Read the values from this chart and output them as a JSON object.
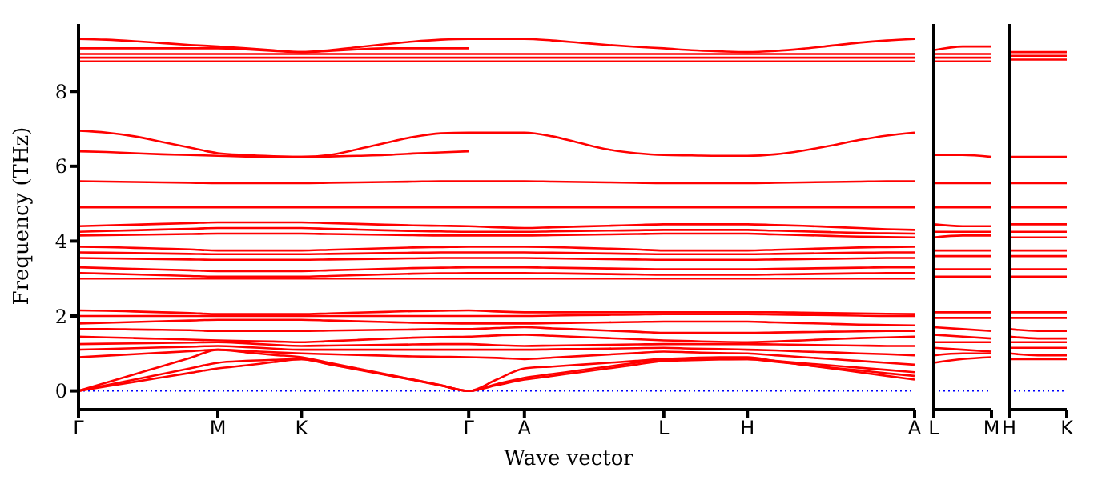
{
  "chart_data": [
    {
      "type": "line",
      "ylabel": "Frequency (THz)",
      "xlabel": "Wave vector",
      "ylim": [
        -0.5,
        9.8
      ],
      "yticks": [
        0,
        2,
        4,
        6,
        8
      ],
      "categories": [
        "Γ",
        null,
        null,
        null,
        null,
        "M",
        null,
        null,
        "K",
        null,
        null,
        null,
        null,
        null,
        "Γ",
        null,
        "A",
        null,
        null,
        null,
        null,
        "L",
        null,
        null,
        "H",
        null,
        null,
        null,
        null,
        null,
        "A"
      ],
      "marker": "none",
      "line_style": "solid",
      "ref_lines": [
        {
          "axis": "y",
          "value": 0,
          "color": "#0000ff",
          "line_style": "dotted"
        }
      ],
      "series": [
        {
          "color": "#ff0000",
          "values": [
            9.4,
            9.38,
            9.34,
            9.29,
            9.24,
            9.2,
            9.15,
            9.1,
            9.05,
            9.1,
            9.18,
            9.26,
            9.33,
            9.38,
            9.4,
            9.4,
            9.4,
            9.36,
            9.3,
            9.24,
            9.19,
            9.15,
            9.1,
            9.07,
            9.05,
            9.08,
            9.14,
            9.22,
            9.3,
            9.36,
            9.4
          ]
        },
        {
          "color": "#ff0000",
          "values": [
            9.15,
            9.15,
            9.15,
            9.15,
            9.15,
            9.15,
            9.12,
            9.08,
            9.05,
            9.08,
            9.12,
            9.15,
            9.15,
            9.15,
            9.15,
            null,
            null,
            null,
            null,
            null,
            null,
            null,
            null,
            null,
            null,
            null,
            null,
            null,
            null,
            null,
            null
          ]
        },
        {
          "color": "#ff0000",
          "values": [
            9.0,
            9.0,
            9.0,
            9.0,
            9.0,
            9.0,
            9.0,
            9.0,
            9.0,
            9.0,
            9.0,
            9.0,
            9.0,
            9.0,
            9.0,
            9.0,
            9.0,
            9.0,
            9.0,
            9.0,
            9.0,
            9.0,
            9.0,
            9.0,
            9.0,
            9.0,
            9.0,
            9.0,
            9.0,
            9.0,
            9.0
          ]
        },
        {
          "color": "#ff0000",
          "values": [
            8.9,
            8.9,
            8.9,
            8.9,
            8.9,
            8.9,
            8.9,
            8.9,
            8.9,
            8.9,
            8.9,
            8.9,
            8.9,
            8.9,
            8.9,
            8.9,
            8.9,
            8.9,
            8.9,
            8.9,
            8.9,
            8.9,
            8.9,
            8.9,
            8.9,
            8.9,
            8.9,
            8.9,
            8.9,
            8.9,
            8.9
          ]
        },
        {
          "color": "#ff0000",
          "values": [
            8.8,
            8.8,
            8.8,
            8.8,
            8.8,
            8.8,
            8.8,
            8.8,
            8.8,
            8.8,
            8.8,
            8.8,
            8.8,
            8.8,
            8.8,
            8.8,
            8.8,
            8.8,
            8.8,
            8.8,
            8.8,
            8.8,
            8.8,
            8.8,
            8.8,
            8.8,
            8.8,
            8.8,
            8.8,
            8.8,
            8.8
          ]
        },
        {
          "color": "#ff0000",
          "values": [
            6.95,
            6.9,
            6.8,
            6.65,
            6.5,
            6.35,
            6.3,
            6.27,
            6.25,
            6.3,
            6.45,
            6.62,
            6.78,
            6.88,
            6.9,
            6.9,
            6.9,
            6.8,
            6.62,
            6.45,
            6.35,
            6.3,
            6.29,
            6.28,
            6.28,
            6.32,
            6.42,
            6.55,
            6.7,
            6.82,
            6.9
          ]
        },
        {
          "color": "#ff0000",
          "values": [
            6.4,
            6.38,
            6.35,
            6.32,
            6.3,
            6.28,
            6.26,
            6.25,
            6.25,
            6.26,
            6.28,
            6.3,
            6.34,
            6.37,
            6.4,
            null,
            null,
            null,
            null,
            null,
            null,
            null,
            null,
            null,
            null,
            null,
            null,
            null,
            null,
            null,
            null
          ]
        },
        {
          "color": "#ff0000",
          "values": [
            5.6,
            5.59,
            5.58,
            5.57,
            5.56,
            5.55,
            5.55,
            5.55,
            5.55,
            5.56,
            5.57,
            5.58,
            5.59,
            5.6,
            5.6,
            5.6,
            5.6,
            5.59,
            5.58,
            5.57,
            5.56,
            5.55,
            5.55,
            5.55,
            5.55,
            5.56,
            5.57,
            5.58,
            5.59,
            5.6,
            5.6
          ]
        },
        {
          "color": "#ff0000",
          "values": [
            4.9,
            4.9,
            4.9,
            4.9,
            4.9,
            4.9,
            4.9,
            4.9,
            4.9,
            4.9,
            4.9,
            4.9,
            4.9,
            4.9,
            4.9,
            4.9,
            4.9,
            4.9,
            4.9,
            4.9,
            4.9,
            4.9,
            4.9,
            4.9,
            4.9,
            4.9,
            4.9,
            4.9,
            4.9,
            4.9,
            4.9
          ]
        },
        {
          "color": "#ff0000",
          "values": [
            4.4,
            4.42,
            4.44,
            4.46,
            4.48,
            4.5,
            4.5,
            4.5,
            4.5,
            4.48,
            4.46,
            4.44,
            4.42,
            4.41,
            4.4,
            4.37,
            4.35,
            4.37,
            4.39,
            4.41,
            4.43,
            4.45,
            4.45,
            4.45,
            4.45,
            4.43,
            4.41,
            4.38,
            4.35,
            4.32,
            4.3
          ]
        },
        {
          "color": "#ff0000",
          "values": [
            4.25,
            4.27,
            4.29,
            4.31,
            4.33,
            4.35,
            4.35,
            4.35,
            4.35,
            4.33,
            4.31,
            4.29,
            4.27,
            4.26,
            4.25,
            4.25,
            4.25,
            4.26,
            4.27,
            4.28,
            4.29,
            4.3,
            4.3,
            4.3,
            4.3,
            4.28,
            4.26,
            4.24,
            4.22,
            4.21,
            4.2
          ]
        },
        {
          "color": "#ff0000",
          "values": [
            4.15,
            4.16,
            4.17,
            4.18,
            4.19,
            4.2,
            4.2,
            4.2,
            4.2,
            4.19,
            4.18,
            4.17,
            4.16,
            4.15,
            4.15,
            4.15,
            4.15,
            4.16,
            4.17,
            4.18,
            4.19,
            4.2,
            4.2,
            4.2,
            4.2,
            4.18,
            4.16,
            4.14,
            4.12,
            4.11,
            4.1
          ]
        },
        {
          "color": "#ff0000",
          "values": [
            3.85,
            3.84,
            3.82,
            3.8,
            3.78,
            3.75,
            3.75,
            3.75,
            3.75,
            3.77,
            3.79,
            3.81,
            3.83,
            3.84,
            3.85,
            3.85,
            3.85,
            3.84,
            3.82,
            3.8,
            3.78,
            3.75,
            3.75,
            3.75,
            3.75,
            3.77,
            3.79,
            3.81,
            3.83,
            3.84,
            3.85
          ]
        },
        {
          "color": "#ff0000",
          "values": [
            3.7,
            3.69,
            3.68,
            3.67,
            3.66,
            3.65,
            3.65,
            3.65,
            3.65,
            3.66,
            3.67,
            3.68,
            3.69,
            3.7,
            3.7,
            3.7,
            3.7,
            3.69,
            3.68,
            3.67,
            3.66,
            3.65,
            3.65,
            3.65,
            3.65,
            3.66,
            3.67,
            3.68,
            3.69,
            3.7,
            3.7
          ]
        },
        {
          "color": "#ff0000",
          "values": [
            3.55,
            3.54,
            3.53,
            3.52,
            3.51,
            3.5,
            3.5,
            3.5,
            3.5,
            3.51,
            3.52,
            3.53,
            3.54,
            3.55,
            3.55,
            3.55,
            3.55,
            3.54,
            3.53,
            3.52,
            3.51,
            3.5,
            3.5,
            3.5,
            3.5,
            3.51,
            3.52,
            3.53,
            3.54,
            3.55,
            3.55
          ]
        },
        {
          "color": "#ff0000",
          "values": [
            3.3,
            3.28,
            3.26,
            3.24,
            3.22,
            3.2,
            3.2,
            3.2,
            3.2,
            3.22,
            3.24,
            3.26,
            3.28,
            3.29,
            3.3,
            3.3,
            3.3,
            3.29,
            3.28,
            3.27,
            3.26,
            3.25,
            3.25,
            3.25,
            3.25,
            3.26,
            3.27,
            3.28,
            3.29,
            3.3,
            3.3
          ]
        },
        {
          "color": "#ff0000",
          "values": [
            3.15,
            3.13,
            3.11,
            3.09,
            3.07,
            3.05,
            3.05,
            3.05,
            3.05,
            3.07,
            3.09,
            3.11,
            3.13,
            3.14,
            3.15,
            3.15,
            3.15,
            3.14,
            3.13,
            3.12,
            3.11,
            3.1,
            3.1,
            3.1,
            3.1,
            3.11,
            3.12,
            3.13,
            3.14,
            3.15,
            3.15
          ]
        },
        {
          "color": "#ff0000",
          "values": [
            3.0,
            3.0,
            3.0,
            3.0,
            3.0,
            3.0,
            3.0,
            3.0,
            3.0,
            3.0,
            3.0,
            3.0,
            3.0,
            3.0,
            3.0,
            3.0,
            3.0,
            3.0,
            3.0,
            3.0,
            3.0,
            3.0,
            3.0,
            3.0,
            3.0,
            3.0,
            3.0,
            3.0,
            3.0,
            3.0,
            3.0
          ]
        },
        {
          "color": "#ff0000",
          "values": [
            2.15,
            2.14,
            2.12,
            2.1,
            2.08,
            2.05,
            2.05,
            2.05,
            2.05,
            2.07,
            2.09,
            2.11,
            2.13,
            2.14,
            2.15,
            2.12,
            2.1,
            2.1,
            2.1,
            2.1,
            2.1,
            2.1,
            2.1,
            2.1,
            2.1,
            2.1,
            2.09,
            2.08,
            2.07,
            2.06,
            2.05
          ]
        },
        {
          "color": "#ff0000",
          "values": [
            2.0,
            2.0,
            2.0,
            2.0,
            2.0,
            2.0,
            2.0,
            2.0,
            2.0,
            2.0,
            2.0,
            2.0,
            2.0,
            2.0,
            2.0,
            2.0,
            2.0,
            2.01,
            2.02,
            2.03,
            2.04,
            2.05,
            2.05,
            2.05,
            2.05,
            2.04,
            2.03,
            2.02,
            2.01,
            2.0,
            2.0
          ]
        },
        {
          "color": "#ff0000",
          "values": [
            1.8,
            1.82,
            1.84,
            1.86,
            1.88,
            1.9,
            1.9,
            1.9,
            1.9,
            1.88,
            1.86,
            1.84,
            1.82,
            1.81,
            1.8,
            1.8,
            1.8,
            1.81,
            1.82,
            1.83,
            1.84,
            1.85,
            1.85,
            1.85,
            1.85,
            1.83,
            1.81,
            1.79,
            1.77,
            1.76,
            1.75
          ]
        },
        {
          "color": "#ff0000",
          "values": [
            1.65,
            1.65,
            1.64,
            1.63,
            1.62,
            1.6,
            1.6,
            1.6,
            1.6,
            1.61,
            1.62,
            1.63,
            1.64,
            1.65,
            1.65,
            1.68,
            1.7,
            1.67,
            1.64,
            1.61,
            1.58,
            1.55,
            1.55,
            1.55,
            1.55,
            1.56,
            1.57,
            1.58,
            1.59,
            1.6,
            1.6
          ]
        },
        {
          "color": "#ff0000",
          "values": [
            1.45,
            1.43,
            1.41,
            1.39,
            1.37,
            1.35,
            1.33,
            1.32,
            1.3,
            1.33,
            1.36,
            1.39,
            1.42,
            1.44,
            1.45,
            1.48,
            1.5,
            1.47,
            1.44,
            1.41,
            1.38,
            1.35,
            1.33,
            1.31,
            1.3,
            1.32,
            1.35,
            1.38,
            1.41,
            1.43,
            1.45
          ]
        },
        {
          "color": "#ff0000",
          "values": [
            1.25,
            1.26,
            1.27,
            1.28,
            1.29,
            1.3,
            1.27,
            1.23,
            1.2,
            1.21,
            1.22,
            1.23,
            1.24,
            1.25,
            1.25,
            1.22,
            1.2,
            1.21,
            1.22,
            1.23,
            1.24,
            1.25,
            1.25,
            1.25,
            1.25,
            1.24,
            1.23,
            1.22,
            1.21,
            1.2,
            1.2
          ]
        },
        {
          "color": "#ff0000",
          "values": [
            1.1,
            1.12,
            1.14,
            1.16,
            1.18,
            1.2,
            1.17,
            1.13,
            1.1,
            1.1,
            1.1,
            1.1,
            1.1,
            1.1,
            1.1,
            1.1,
            1.1,
            1.11,
            1.12,
            1.13,
            1.14,
            1.15,
            1.13,
            1.12,
            1.1,
            1.08,
            1.05,
            1.03,
            1.0,
            0.98,
            0.95
          ]
        },
        {
          "color": "#ff0000",
          "values": [
            0.9,
            0.94,
            0.98,
            1.02,
            1.06,
            1.1,
            1.07,
            1.03,
            1.0,
            0.98,
            0.96,
            0.94,
            0.92,
            0.91,
            0.9,
            0.88,
            0.85,
            0.89,
            0.93,
            0.97,
            1.01,
            1.05,
            1.03,
            1.01,
            1.0,
            0.95,
            0.9,
            0.85,
            0.8,
            0.75,
            0.7
          ]
        },
        {
          "color": "#ff0000",
          "values": [
            0.0,
            0.22,
            0.44,
            0.66,
            0.88,
            1.1,
            1.03,
            0.96,
            0.9,
            0.75,
            0.6,
            0.45,
            0.3,
            0.15,
            0.0,
            0.18,
            0.35,
            0.45,
            0.55,
            0.65,
            0.75,
            0.85,
            0.88,
            0.9,
            0.9,
            0.8,
            0.7,
            0.6,
            0.5,
            0.4,
            0.3
          ]
        },
        {
          "color": "#ff0000",
          "values": [
            0.0,
            0.15,
            0.3,
            0.45,
            0.6,
            0.75,
            0.8,
            0.83,
            0.85,
            0.72,
            0.58,
            0.44,
            0.3,
            0.15,
            0.0,
            0.3,
            0.6,
            0.65,
            0.7,
            0.75,
            0.8,
            0.85,
            0.85,
            0.85,
            0.85,
            0.78,
            0.7,
            0.62,
            0.55,
            0.47,
            0.4
          ]
        },
        {
          "color": "#ff0000",
          "values": [
            0.0,
            0.12,
            0.24,
            0.36,
            0.48,
            0.6,
            0.68,
            0.77,
            0.85,
            0.71,
            0.57,
            0.43,
            0.29,
            0.14,
            0.0,
            0.15,
            0.3,
            0.4,
            0.5,
            0.6,
            0.7,
            0.8,
            0.82,
            0.84,
            0.85,
            0.8,
            0.74,
            0.68,
            0.62,
            0.56,
            0.5
          ]
        }
      ]
    },
    {
      "type": "line",
      "ylim": [
        -0.5,
        9.8
      ],
      "yticks": [
        0,
        2,
        4,
        6,
        8
      ],
      "tick_labels": "x",
      "categories": [
        "L",
        null,
        "M"
      ],
      "marker": "none",
      "line_style": "solid",
      "ref_lines": [
        {
          "axis": "y",
          "value": 0,
          "color": "#0000ff",
          "line_style": "dotted"
        }
      ],
      "series": [
        {
          "color": "#ff0000",
          "values": [
            9.1,
            9.2,
            9.2
          ]
        },
        {
          "color": "#ff0000",
          "values": [
            9.0,
            9.0,
            9.0
          ]
        },
        {
          "color": "#ff0000",
          "values": [
            8.9,
            8.9,
            8.9
          ]
        },
        {
          "color": "#ff0000",
          "values": [
            8.8,
            8.8,
            8.8
          ]
        },
        {
          "color": "#ff0000",
          "values": [
            6.3,
            6.3,
            6.25
          ]
        },
        {
          "color": "#ff0000",
          "values": [
            5.55,
            5.55,
            5.55
          ]
        },
        {
          "color": "#ff0000",
          "values": [
            4.9,
            4.9,
            4.9
          ]
        },
        {
          "color": "#ff0000",
          "values": [
            4.45,
            4.4,
            4.4
          ]
        },
        {
          "color": "#ff0000",
          "values": [
            4.25,
            4.25,
            4.25
          ]
        },
        {
          "color": "#ff0000",
          "values": [
            4.1,
            4.15,
            4.15
          ]
        },
        {
          "color": "#ff0000",
          "values": [
            3.75,
            3.75,
            3.75
          ]
        },
        {
          "color": "#ff0000",
          "values": [
            3.6,
            3.6,
            3.6
          ]
        },
        {
          "color": "#ff0000",
          "values": [
            3.25,
            3.25,
            3.25
          ]
        },
        {
          "color": "#ff0000",
          "values": [
            3.05,
            3.05,
            3.05
          ]
        },
        {
          "color": "#ff0000",
          "values": [
            2.1,
            2.1,
            2.1
          ]
        },
        {
          "color": "#ff0000",
          "values": [
            1.95,
            1.95,
            1.95
          ]
        },
        {
          "color": "#ff0000",
          "values": [
            1.7,
            1.65,
            1.6
          ]
        },
        {
          "color": "#ff0000",
          "values": [
            1.5,
            1.45,
            1.4
          ]
        },
        {
          "color": "#ff0000",
          "values": [
            1.3,
            1.3,
            1.3
          ]
        },
        {
          "color": "#ff0000",
          "values": [
            1.15,
            1.1,
            1.05
          ]
        },
        {
          "color": "#ff0000",
          "values": [
            0.95,
            1.0,
            1.0
          ]
        },
        {
          "color": "#ff0000",
          "values": [
            0.75,
            0.85,
            0.9
          ]
        }
      ]
    },
    {
      "type": "line",
      "ylim": [
        -0.5,
        9.8
      ],
      "yticks": [
        0,
        2,
        4,
        6,
        8
      ],
      "tick_labels": "x",
      "categories": [
        "H",
        null,
        "K"
      ],
      "marker": "none",
      "line_style": "solid",
      "ref_lines": [
        {
          "axis": "y",
          "value": 0,
          "color": "#0000ff",
          "line_style": "dotted"
        }
      ],
      "series": [
        {
          "color": "#ff0000",
          "values": [
            9.05,
            9.05,
            9.05
          ]
        },
        {
          "color": "#ff0000",
          "values": [
            8.95,
            8.95,
            8.95
          ]
        },
        {
          "color": "#ff0000",
          "values": [
            8.85,
            8.85,
            8.85
          ]
        },
        {
          "color": "#ff0000",
          "values": [
            6.25,
            6.25,
            6.25
          ]
        },
        {
          "color": "#ff0000",
          "values": [
            5.55,
            5.55,
            5.55
          ]
        },
        {
          "color": "#ff0000",
          "values": [
            4.9,
            4.9,
            4.9
          ]
        },
        {
          "color": "#ff0000",
          "values": [
            4.45,
            4.45,
            4.45
          ]
        },
        {
          "color": "#ff0000",
          "values": [
            4.25,
            4.25,
            4.25
          ]
        },
        {
          "color": "#ff0000",
          "values": [
            4.1,
            4.1,
            4.1
          ]
        },
        {
          "color": "#ff0000",
          "values": [
            3.75,
            3.75,
            3.75
          ]
        },
        {
          "color": "#ff0000",
          "values": [
            3.6,
            3.6,
            3.6
          ]
        },
        {
          "color": "#ff0000",
          "values": [
            3.25,
            3.25,
            3.25
          ]
        },
        {
          "color": "#ff0000",
          "values": [
            3.05,
            3.05,
            3.05
          ]
        },
        {
          "color": "#ff0000",
          "values": [
            2.1,
            2.1,
            2.1
          ]
        },
        {
          "color": "#ff0000",
          "values": [
            1.95,
            1.95,
            1.95
          ]
        },
        {
          "color": "#ff0000",
          "values": [
            1.65,
            1.6,
            1.6
          ]
        },
        {
          "color": "#ff0000",
          "values": [
            1.45,
            1.4,
            1.4
          ]
        },
        {
          "color": "#ff0000",
          "values": [
            1.3,
            1.3,
            1.3
          ]
        },
        {
          "color": "#ff0000",
          "values": [
            1.15,
            1.15,
            1.15
          ]
        },
        {
          "color": "#ff0000",
          "values": [
            1.0,
            0.95,
            0.95
          ]
        },
        {
          "color": "#ff0000",
          "values": [
            0.85,
            0.85,
            0.85
          ]
        }
      ]
    }
  ]
}
